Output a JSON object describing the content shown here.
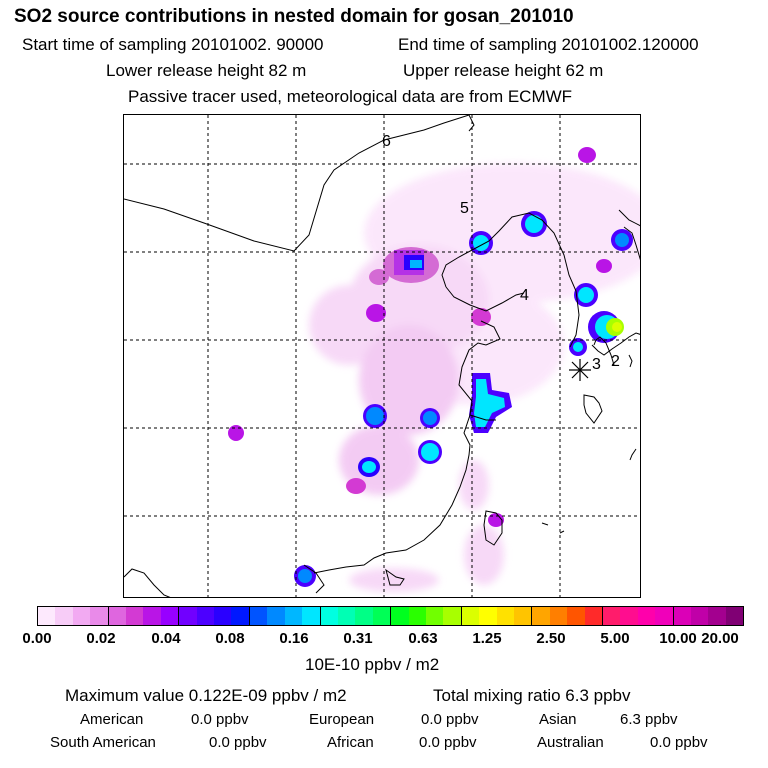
{
  "header": {
    "title": "SO2 source contributions in nested domain for gosan_201010",
    "start_label": "Start time of sampling 20101002. 90000",
    "end_label": "End time of sampling 20101002.120000",
    "lower_label": "Lower release height   82 m",
    "upper_label": "Upper release height   62 m",
    "tracer_note": "Passive tracer used, meteorological data are from ECMWF"
  },
  "map": {
    "grid_line_color": "#000000",
    "coast_color": "#000000",
    "time_markers": [
      "6",
      "5",
      "4",
      "3",
      "2"
    ],
    "receptor_symbol": "receptor-star"
  },
  "colorbar": {
    "colors": [
      "#fde9fd",
      "#f7ccf7",
      "#f2aaf2",
      "#e98ae9",
      "#df66df",
      "#d33ad3",
      "#b915e6",
      "#9800ff",
      "#7100ff",
      "#4c00ff",
      "#2a00ff",
      "#0018ff",
      "#0054ff",
      "#0089ff",
      "#00b7ff",
      "#00e6ff",
      "#00ffe1",
      "#00ffb4",
      "#00ff86",
      "#00ff56",
      "#00ff1f",
      "#2aff00",
      "#71ff00",
      "#a8ff00",
      "#dbff00",
      "#ffff00",
      "#ffe100",
      "#ffc400",
      "#ffa500",
      "#ff7f00",
      "#ff5500",
      "#ff2a2a",
      "#ff1c6b",
      "#ff0d8f",
      "#ff00ab",
      "#f000ba",
      "#db00b7",
      "#c000a8",
      "#a3008f",
      "#800074"
    ],
    "ticks": [
      "0.00",
      "0.02",
      "0.04",
      "0.08",
      "0.16",
      "0.31",
      "0.63",
      "1.25",
      "2.50",
      "5.00",
      "10.00",
      "20.00"
    ],
    "unit": "10E-10 ppbv / m2"
  },
  "stats": {
    "max_label": "Maximum value  0.122E-09 ppbv / m2",
    "total_label": "Total mixing ratio       6.3 ppbv",
    "american_label": "American",
    "american_value": "0.0 ppbv",
    "european_label": "European",
    "european_value": "0.0 ppbv",
    "asian_label": "Asian",
    "asian_value": "6.3 ppbv",
    "south_american_label": "South American",
    "south_american_value": "0.0 ppbv",
    "african_label": "African",
    "african_value": "0.0 ppbv",
    "australian_label": "Australian",
    "australian_value": "0.0 ppbv"
  }
}
